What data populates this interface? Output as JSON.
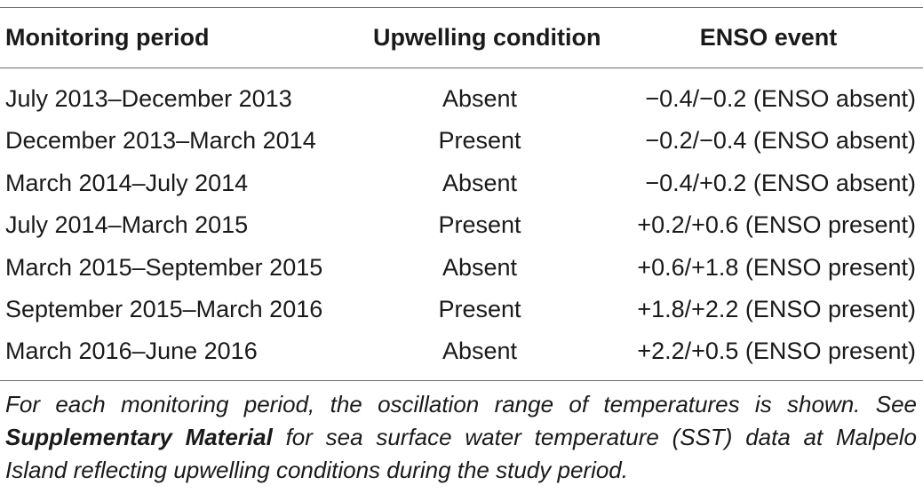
{
  "table": {
    "headers": [
      "Monitoring period",
      "Upwelling condition",
      "ENSO event"
    ],
    "rows": [
      {
        "period": "July 2013–December 2013",
        "upwelling": "Absent",
        "enso": "−0.4/−0.2 (ENSO absent)"
      },
      {
        "period": "December 2013–March 2014",
        "upwelling": "Present",
        "enso": "−0.2/−0.4 (ENSO absent)"
      },
      {
        "period": "March 2014–July 2014",
        "upwelling": "Absent",
        "enso": "−0.4/+0.2 (ENSO absent)"
      },
      {
        "period": "July 2014–March 2015",
        "upwelling": "Present",
        "enso": "+0.2/+0.6 (ENSO present)"
      },
      {
        "period": "March 2015–September 2015",
        "upwelling": "Absent",
        "enso": "+0.6/+1.8 (ENSO present)"
      },
      {
        "period": "September 2015–March 2016",
        "upwelling": "Present",
        "enso": "+1.8/+2.2 (ENSO present)"
      },
      {
        "period": "March 2016–June 2016",
        "upwelling": "Absent",
        "enso": "+2.2/+0.5 (ENSO present)"
      }
    ]
  },
  "caption": {
    "part1": "For each monitoring period, the oscillation range of temperatures is shown. See ",
    "bold": "Supplementary Material",
    "part2": " for sea surface water temperature (SST) data at Malpelo Island reflecting upwelling conditions during the study period."
  }
}
